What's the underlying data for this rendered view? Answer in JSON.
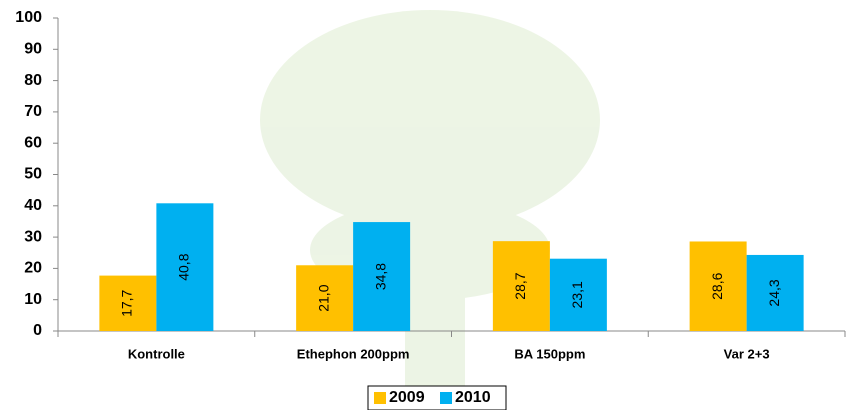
{
  "chart_data": {
    "type": "bar",
    "categories": [
      "Kontrolle",
      "Ethephon 200ppm",
      "BA 150ppm",
      "Var 2+3"
    ],
    "series": [
      {
        "name": "2009",
        "color": "#ffc000",
        "values": [
          17.7,
          21.0,
          28.7,
          28.6
        ],
        "value_labels": [
          "17,7",
          "21,0",
          "28,7",
          "28,6"
        ]
      },
      {
        "name": "2010",
        "color": "#00b0f0",
        "values": [
          40.8,
          34.8,
          23.1,
          24.3
        ],
        "value_labels": [
          "40,8",
          "34,8",
          "23,1",
          "24,3"
        ]
      }
    ],
    "ylim": [
      0,
      100
    ],
    "yticks": [
      0,
      10,
      20,
      30,
      40,
      50,
      60,
      70,
      80,
      90,
      100
    ],
    "legend": "bottom"
  }
}
